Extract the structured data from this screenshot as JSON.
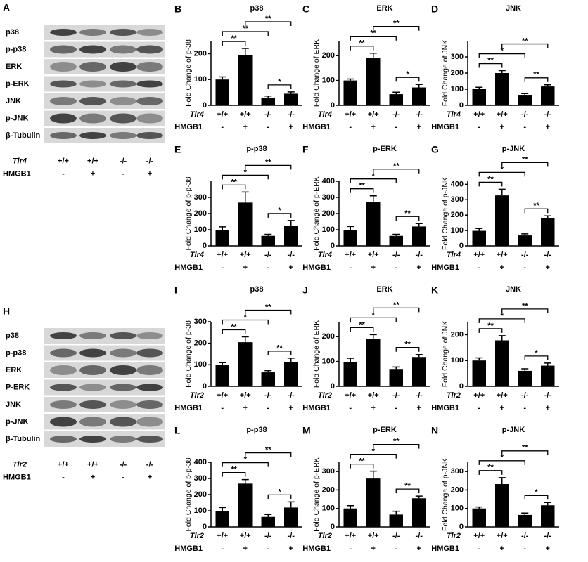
{
  "blots": [
    {
      "panel": "A",
      "rows": [
        "p38",
        "p-p38",
        "ERK",
        "p-ERK",
        "JNK",
        "p-JNK",
        "β-Tubulin"
      ],
      "group_label": "Tlr4",
      "genotypes": [
        "+/+",
        "+/+",
        "-/-",
        "-/-"
      ],
      "treatment_label": "HMGB1",
      "treatments": [
        "-",
        "+",
        "-",
        "+"
      ]
    },
    {
      "panel": "H",
      "rows": [
        "p38",
        "p-p38",
        "ERK",
        "P-ERK",
        "JNK",
        "p-JNK",
        "β-Tubulin"
      ],
      "group_label": "Tlr2",
      "genotypes": [
        "+/+",
        "+/+",
        "-/-",
        "-/-"
      ],
      "treatment_label": "HMGB1",
      "treatments": [
        "-",
        "+",
        "-",
        "+"
      ]
    }
  ],
  "chart_data": [
    {
      "type": "bar",
      "panel": "B",
      "title": "p38",
      "y_label": "Fold Change of p-38",
      "group_label": "Tlr4",
      "categories": [
        "+/+",
        "+/+",
        "-/-",
        "-/-"
      ],
      "treatment_label": "HMGB1",
      "treatments": [
        "-",
        "+",
        "-",
        "+"
      ],
      "values": [
        100,
        195,
        30,
        45
      ],
      "errors": [
        10,
        25,
        6,
        7
      ],
      "color": "#000000",
      "ylim": [
        0,
        250
      ],
      "yticks": [
        0,
        100,
        200
      ],
      "brackets": [
        {
          "from": 0,
          "to": 1,
          "label": "**"
        },
        {
          "from": 0,
          "to": 2,
          "label": "**"
        },
        {
          "from": 1,
          "to": 3,
          "label": "**"
        },
        {
          "from": 2,
          "to": 3,
          "label": "*"
        }
      ]
    },
    {
      "type": "bar",
      "panel": "C",
      "title": "ERK",
      "y_label": "Fold Change of ERK",
      "group_label": "Tlr4",
      "categories": [
        "+/+",
        "+/+",
        "-/-",
        "-/-"
      ],
      "treatment_label": "HMGB1",
      "treatments": [
        "-",
        "+",
        "-",
        "+"
      ],
      "values": [
        100,
        190,
        45,
        72
      ],
      "errors": [
        6,
        20,
        8,
        12
      ],
      "color": "#000000",
      "ylim": [
        0,
        260
      ],
      "yticks": [
        0,
        100,
        200
      ],
      "brackets": [
        {
          "from": 0,
          "to": 1,
          "label": "**"
        },
        {
          "from": 0,
          "to": 2,
          "label": "**"
        },
        {
          "from": 1,
          "to": 3,
          "label": "**"
        },
        {
          "from": 2,
          "to": 3,
          "label": "*"
        }
      ]
    },
    {
      "type": "bar",
      "panel": "D",
      "title": "JNK",
      "y_label": "Fold Change of JNK",
      "group_label": "Tlr4",
      "categories": [
        "+/+",
        "+/+",
        "-/-",
        "-/-"
      ],
      "treatment_label": "HMGB1",
      "treatments": [
        "-",
        "+",
        "-",
        "+"
      ],
      "values": [
        100,
        200,
        65,
        117
      ],
      "errors": [
        12,
        15,
        8,
        10
      ],
      "color": "#000000",
      "ylim": [
        0,
        400
      ],
      "yticks": [
        0,
        100,
        200,
        300
      ],
      "brackets": [
        {
          "from": 0,
          "to": 1,
          "label": "**"
        },
        {
          "from": 0,
          "to": 2,
          "label": "*"
        },
        {
          "from": 1,
          "to": 3,
          "label": "**"
        },
        {
          "from": 2,
          "to": 3,
          "label": "**"
        }
      ]
    },
    {
      "type": "bar",
      "panel": "E",
      "title": "p-p38",
      "y_label": "Fold Change of p-p-38",
      "group_label": "Tlr4",
      "categories": [
        "+/+",
        "+/+",
        "-/-",
        "-/-"
      ],
      "treatment_label": "HMGB1",
      "treatments": [
        "-",
        "+",
        "-",
        "+"
      ],
      "values": [
        100,
        268,
        62,
        122
      ],
      "errors": [
        18,
        65,
        10,
        35
      ],
      "color": "#000000",
      "ylim": [
        0,
        400
      ],
      "yticks": [
        0,
        100,
        200,
        300
      ],
      "brackets": [
        {
          "from": 0,
          "to": 1,
          "label": "**"
        },
        {
          "from": 0,
          "to": 2,
          "label": "*"
        },
        {
          "from": 1,
          "to": 3,
          "label": "**"
        },
        {
          "from": 2,
          "to": 3,
          "label": "*"
        }
      ]
    },
    {
      "type": "bar",
      "panel": "F",
      "title": "p-ERK",
      "y_label": "Fold Change of p-ERK",
      "group_label": "Tlr4",
      "categories": [
        "+/+",
        "+/+",
        "-/-",
        "-/-"
      ],
      "treatment_label": "HMGB1",
      "treatments": [
        "-",
        "+",
        "-",
        "+"
      ],
      "values": [
        100,
        272,
        62,
        120
      ],
      "errors": [
        20,
        38,
        10,
        18
      ],
      "color": "#000000",
      "ylim": [
        0,
        400
      ],
      "yticks": [
        0,
        100,
        200,
        300,
        400
      ],
      "brackets": [
        {
          "from": 0,
          "to": 1,
          "label": "**"
        },
        {
          "from": 0,
          "to": 2,
          "label": "*"
        },
        {
          "from": 1,
          "to": 3,
          "label": "**"
        },
        {
          "from": 2,
          "to": 3,
          "label": "**"
        }
      ]
    },
    {
      "type": "bar",
      "panel": "G",
      "title": "p-JNK",
      "y_label": "Fold Change of p-JNK",
      "group_label": "Tlr4",
      "categories": [
        "+/+",
        "+/+",
        "-/-",
        "-/-"
      ],
      "treatment_label": "HMGB1",
      "treatments": [
        "-",
        "+",
        "-",
        "+"
      ],
      "values": [
        98,
        328,
        68,
        180
      ],
      "errors": [
        15,
        40,
        10,
        15
      ],
      "color": "#000000",
      "ylim": [
        0,
        420
      ],
      "yticks": [
        0,
        100,
        200,
        300,
        400
      ],
      "brackets": [
        {
          "from": 0,
          "to": 1,
          "label": "**"
        },
        {
          "from": 0,
          "to": 2,
          "label": "*"
        },
        {
          "from": 1,
          "to": 3,
          "label": "**"
        },
        {
          "from": 2,
          "to": 3,
          "label": "**"
        }
      ]
    },
    {
      "type": "bar",
      "panel": "I",
      "title": "p38",
      "y_label": "Fold Change of p-38",
      "group_label": "Tlr2",
      "categories": [
        "+/+",
        "+/+",
        "-/-",
        "-/-"
      ],
      "treatment_label": "HMGB1",
      "treatments": [
        "-",
        "+",
        "-",
        "+"
      ],
      "values": [
        100,
        205,
        65,
        113
      ],
      "errors": [
        10,
        25,
        8,
        18
      ],
      "color": "#000000",
      "ylim": [
        0,
        300
      ],
      "yticks": [
        0,
        100,
        200,
        300
      ],
      "brackets": [
        {
          "from": 0,
          "to": 1,
          "label": "**"
        },
        {
          "from": 0,
          "to": 2,
          "label": "*"
        },
        {
          "from": 1,
          "to": 3,
          "label": "**"
        },
        {
          "from": 2,
          "to": 3,
          "label": "**"
        }
      ]
    },
    {
      "type": "bar",
      "panel": "J",
      "title": "ERK",
      "y_label": "Fold Change of ERK",
      "group_label": "Tlr2",
      "categories": [
        "+/+",
        "+/+",
        "-/-",
        "-/-"
      ],
      "treatment_label": "HMGB1",
      "treatments": [
        "-",
        "+",
        "-",
        "+"
      ],
      "values": [
        98,
        190,
        70,
        118
      ],
      "errors": [
        15,
        18,
        8,
        10
      ],
      "color": "#000000",
      "ylim": [
        0,
        260
      ],
      "yticks": [
        0,
        100,
        200
      ],
      "brackets": [
        {
          "from": 0,
          "to": 1,
          "label": "**"
        },
        {
          "from": 0,
          "to": 2,
          "label": "*"
        },
        {
          "from": 1,
          "to": 3,
          "label": "**"
        },
        {
          "from": 2,
          "to": 3,
          "label": "**"
        }
      ]
    },
    {
      "type": "bar",
      "panel": "K",
      "title": "JNK",
      "y_label": "Fold Change of JNK",
      "group_label": "Tlr2",
      "categories": [
        "+/+",
        "+/+",
        "-/-",
        "-/-"
      ],
      "treatment_label": "HMGB1",
      "treatments": [
        "-",
        "+",
        "-",
        "+"
      ],
      "values": [
        100,
        178,
        60,
        80
      ],
      "errors": [
        10,
        18,
        8,
        10
      ],
      "color": "#000000",
      "ylim": [
        0,
        250
      ],
      "yticks": [
        0,
        100,
        200
      ],
      "brackets": [
        {
          "from": 0,
          "to": 1,
          "label": "**"
        },
        {
          "from": 0,
          "to": 2,
          "label": "*"
        },
        {
          "from": 1,
          "to": 3,
          "label": "**"
        },
        {
          "from": 2,
          "to": 3,
          "label": "*"
        }
      ]
    },
    {
      "type": "bar",
      "panel": "L",
      "title": "p-p38",
      "y_label": "Fold Change of p-p-38",
      "group_label": "Tlr2",
      "categories": [
        "+/+",
        "+/+",
        "-/-",
        "-/-"
      ],
      "treatment_label": "HMGB1",
      "treatments": [
        "-",
        "+",
        "-",
        "+"
      ],
      "values": [
        100,
        268,
        62,
        120
      ],
      "errors": [
        20,
        25,
        15,
        35
      ],
      "color": "#000000",
      "ylim": [
        0,
        400
      ],
      "yticks": [
        0,
        100,
        200,
        300,
        400
      ],
      "brackets": [
        {
          "from": 0,
          "to": 1,
          "label": "**"
        },
        {
          "from": 0,
          "to": 2,
          "label": "*"
        },
        {
          "from": 1,
          "to": 3,
          "label": "**"
        },
        {
          "from": 2,
          "to": 3,
          "label": "*"
        }
      ]
    },
    {
      "type": "bar",
      "panel": "M",
      "title": "p-ERK",
      "y_label": "Fold Change of p-ERK",
      "group_label": "Tlr2",
      "categories": [
        "+/+",
        "+/+",
        "-/-",
        "-/-"
      ],
      "treatment_label": "HMGB1",
      "treatments": [
        "-",
        "+",
        "-",
        "+"
      ],
      "values": [
        100,
        262,
        67,
        155
      ],
      "errors": [
        15,
        40,
        18,
        12
      ],
      "color": "#000000",
      "ylim": [
        0,
        350
      ],
      "yticks": [
        0,
        100,
        200,
        300
      ],
      "brackets": [
        {
          "from": 0,
          "to": 1,
          "label": "**"
        },
        {
          "from": 0,
          "to": 2,
          "label": "*"
        },
        {
          "from": 1,
          "to": 3,
          "label": "**"
        },
        {
          "from": 2,
          "to": 3,
          "label": "**"
        }
      ]
    },
    {
      "type": "bar",
      "panel": "N",
      "title": "p-JNK",
      "y_label": "Fold Change of p-JNK",
      "group_label": "Tlr2",
      "categories": [
        "+/+",
        "+/+",
        "-/-",
        "-/-"
      ],
      "treatment_label": "HMGB1",
      "treatments": [
        "-",
        "+",
        "-",
        "+"
      ],
      "values": [
        100,
        232,
        65,
        117
      ],
      "errors": [
        8,
        35,
        10,
        15
      ],
      "color": "#000000",
      "ylim": [
        0,
        350
      ],
      "yticks": [
        0,
        100,
        200,
        300
      ],
      "brackets": [
        {
          "from": 0,
          "to": 1,
          "label": "**"
        },
        {
          "from": 0,
          "to": 2,
          "label": "*"
        },
        {
          "from": 1,
          "to": 3,
          "label": "**"
        },
        {
          "from": 2,
          "to": 3,
          "label": "*"
        }
      ]
    }
  ]
}
